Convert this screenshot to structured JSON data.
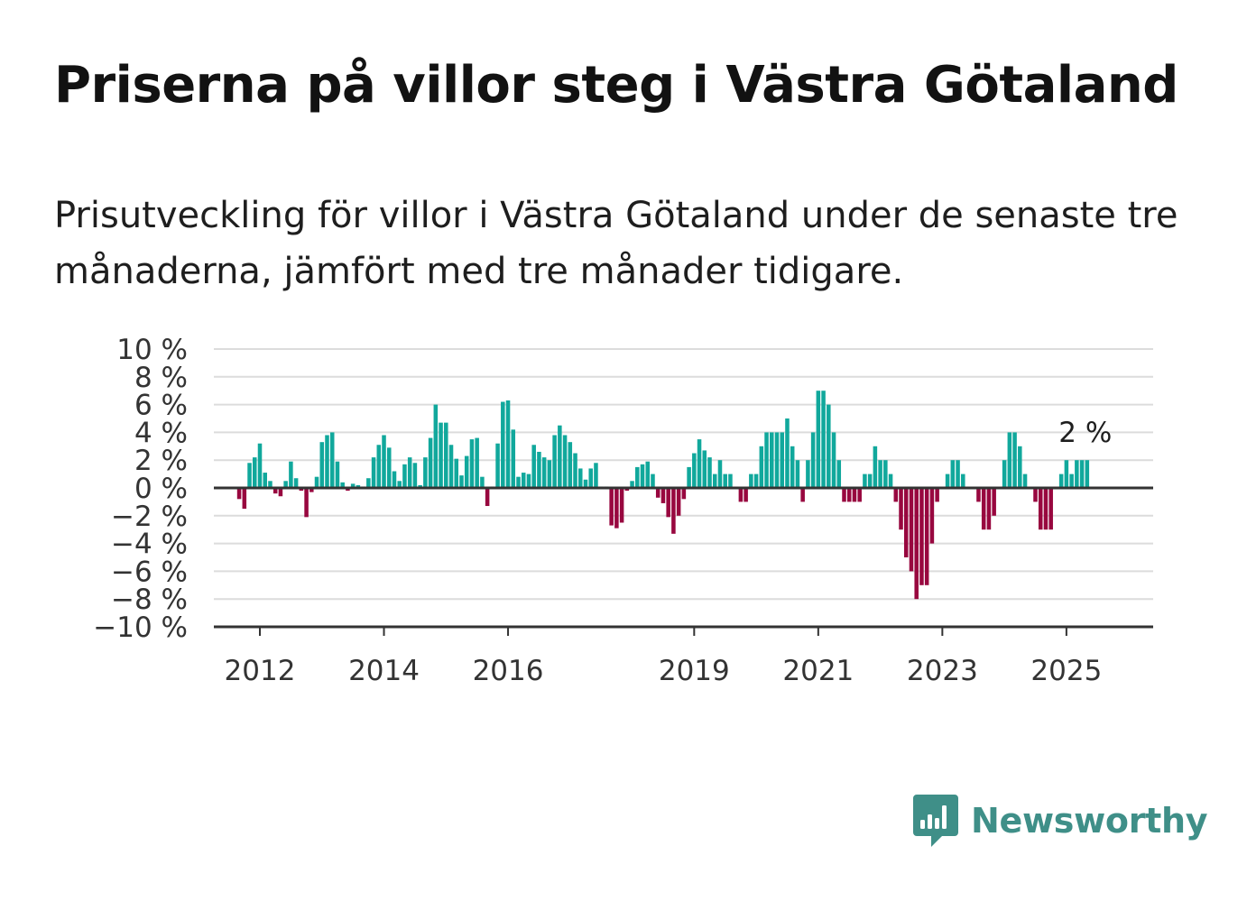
{
  "title": "Priserna på villor steg i Västra Götaland",
  "subtitle": "Prisutveckling för villor i Västra Götaland under de senaste tre månaderna, jämfört med tre månader tidigare.",
  "brand": {
    "name": "Newsworthy",
    "color": "#3f8f88",
    "icon": "bar-chart-speech-bubble-icon"
  },
  "colors": {
    "positive": "#11a89c",
    "negative": "#98073f",
    "grid": "#dcdcdc",
    "axis": "#333333"
  },
  "chart_data": {
    "type": "bar",
    "x_start": "2011-09",
    "frequency": "monthly",
    "ylim": [
      -10,
      10
    ],
    "y_ticks": [
      10,
      8,
      6,
      4,
      2,
      0,
      -2,
      -4,
      -6,
      -8,
      -10
    ],
    "y_tick_labels": [
      "10 %",
      "8 %",
      "6 %",
      "4 %",
      "2 %",
      "0 %",
      "−2 %",
      "−4 %",
      "−6 %",
      "−8 %",
      "−10 %"
    ],
    "x_tick_labels": [
      "2012",
      "2014",
      "2016",
      "2019",
      "2021",
      "2023",
      "2025"
    ],
    "annotation": "2 %",
    "values": [
      -0.8,
      -1.5,
      1.8,
      2.2,
      3.2,
      1.1,
      0.5,
      -0.4,
      -0.6,
      0.5,
      1.9,
      0.7,
      -0.2,
      -2.1,
      -0.3,
      0.8,
      3.3,
      3.8,
      4.0,
      1.9,
      0.4,
      -0.2,
      0.3,
      0.2,
      0.1,
      0.7,
      2.2,
      3.1,
      3.8,
      2.9,
      1.2,
      0.5,
      1.7,
      2.2,
      1.8,
      0.2,
      2.2,
      3.6,
      6.0,
      4.7,
      4.7,
      3.1,
      2.1,
      0.9,
      2.3,
      3.5,
      3.6,
      0.8,
      -1.3,
      0.1,
      3.2,
      6.2,
      6.3,
      4.2,
      0.8,
      1.1,
      1.0,
      3.1,
      2.6,
      2.2,
      2.0,
      3.8,
      4.5,
      3.8,
      3.3,
      2.5,
      1.4,
      0.6,
      1.4,
      1.8,
      0.1,
      0.1,
      -2.7,
      -2.9,
      -2.5,
      -0.2,
      0.5,
      1.5,
      1.7,
      1.9,
      1.0,
      -0.7,
      -1.1,
      -2.1,
      -3.3,
      -2.0,
      -0.8,
      1.5,
      2.5,
      3.5,
      2.7,
      2.2,
      1.0,
      2.0,
      1.0,
      1.0,
      0.0,
      -1.0,
      -1.0,
      1.0,
      1.0,
      3.0,
      4.0,
      4.0,
      4.0,
      4.0,
      5.0,
      3.0,
      2.0,
      -1.0,
      2.0,
      4.0,
      7.0,
      7.0,
      6.0,
      4.0,
      2.0,
      -1.0,
      -1.0,
      -1.0,
      -1.0,
      1.0,
      1.0,
      3.0,
      2.0,
      2.0,
      1.0,
      -1.0,
      -3.0,
      -5.0,
      -6.0,
      -8.0,
      -7.0,
      -7.0,
      -4.0,
      -1.0,
      0.0,
      1.0,
      2.0,
      2.0,
      1.0,
      0.0,
      0.0,
      -1.0,
      -3.0,
      -3.0,
      -2.0,
      0.0,
      2.0,
      4.0,
      4.0,
      3.0,
      1.0,
      0.0,
      -1.0,
      -3.0,
      -3.0,
      -3.0,
      0.0,
      1.0,
      2.0,
      1.0,
      2.0,
      2.0,
      2.0
    ]
  }
}
